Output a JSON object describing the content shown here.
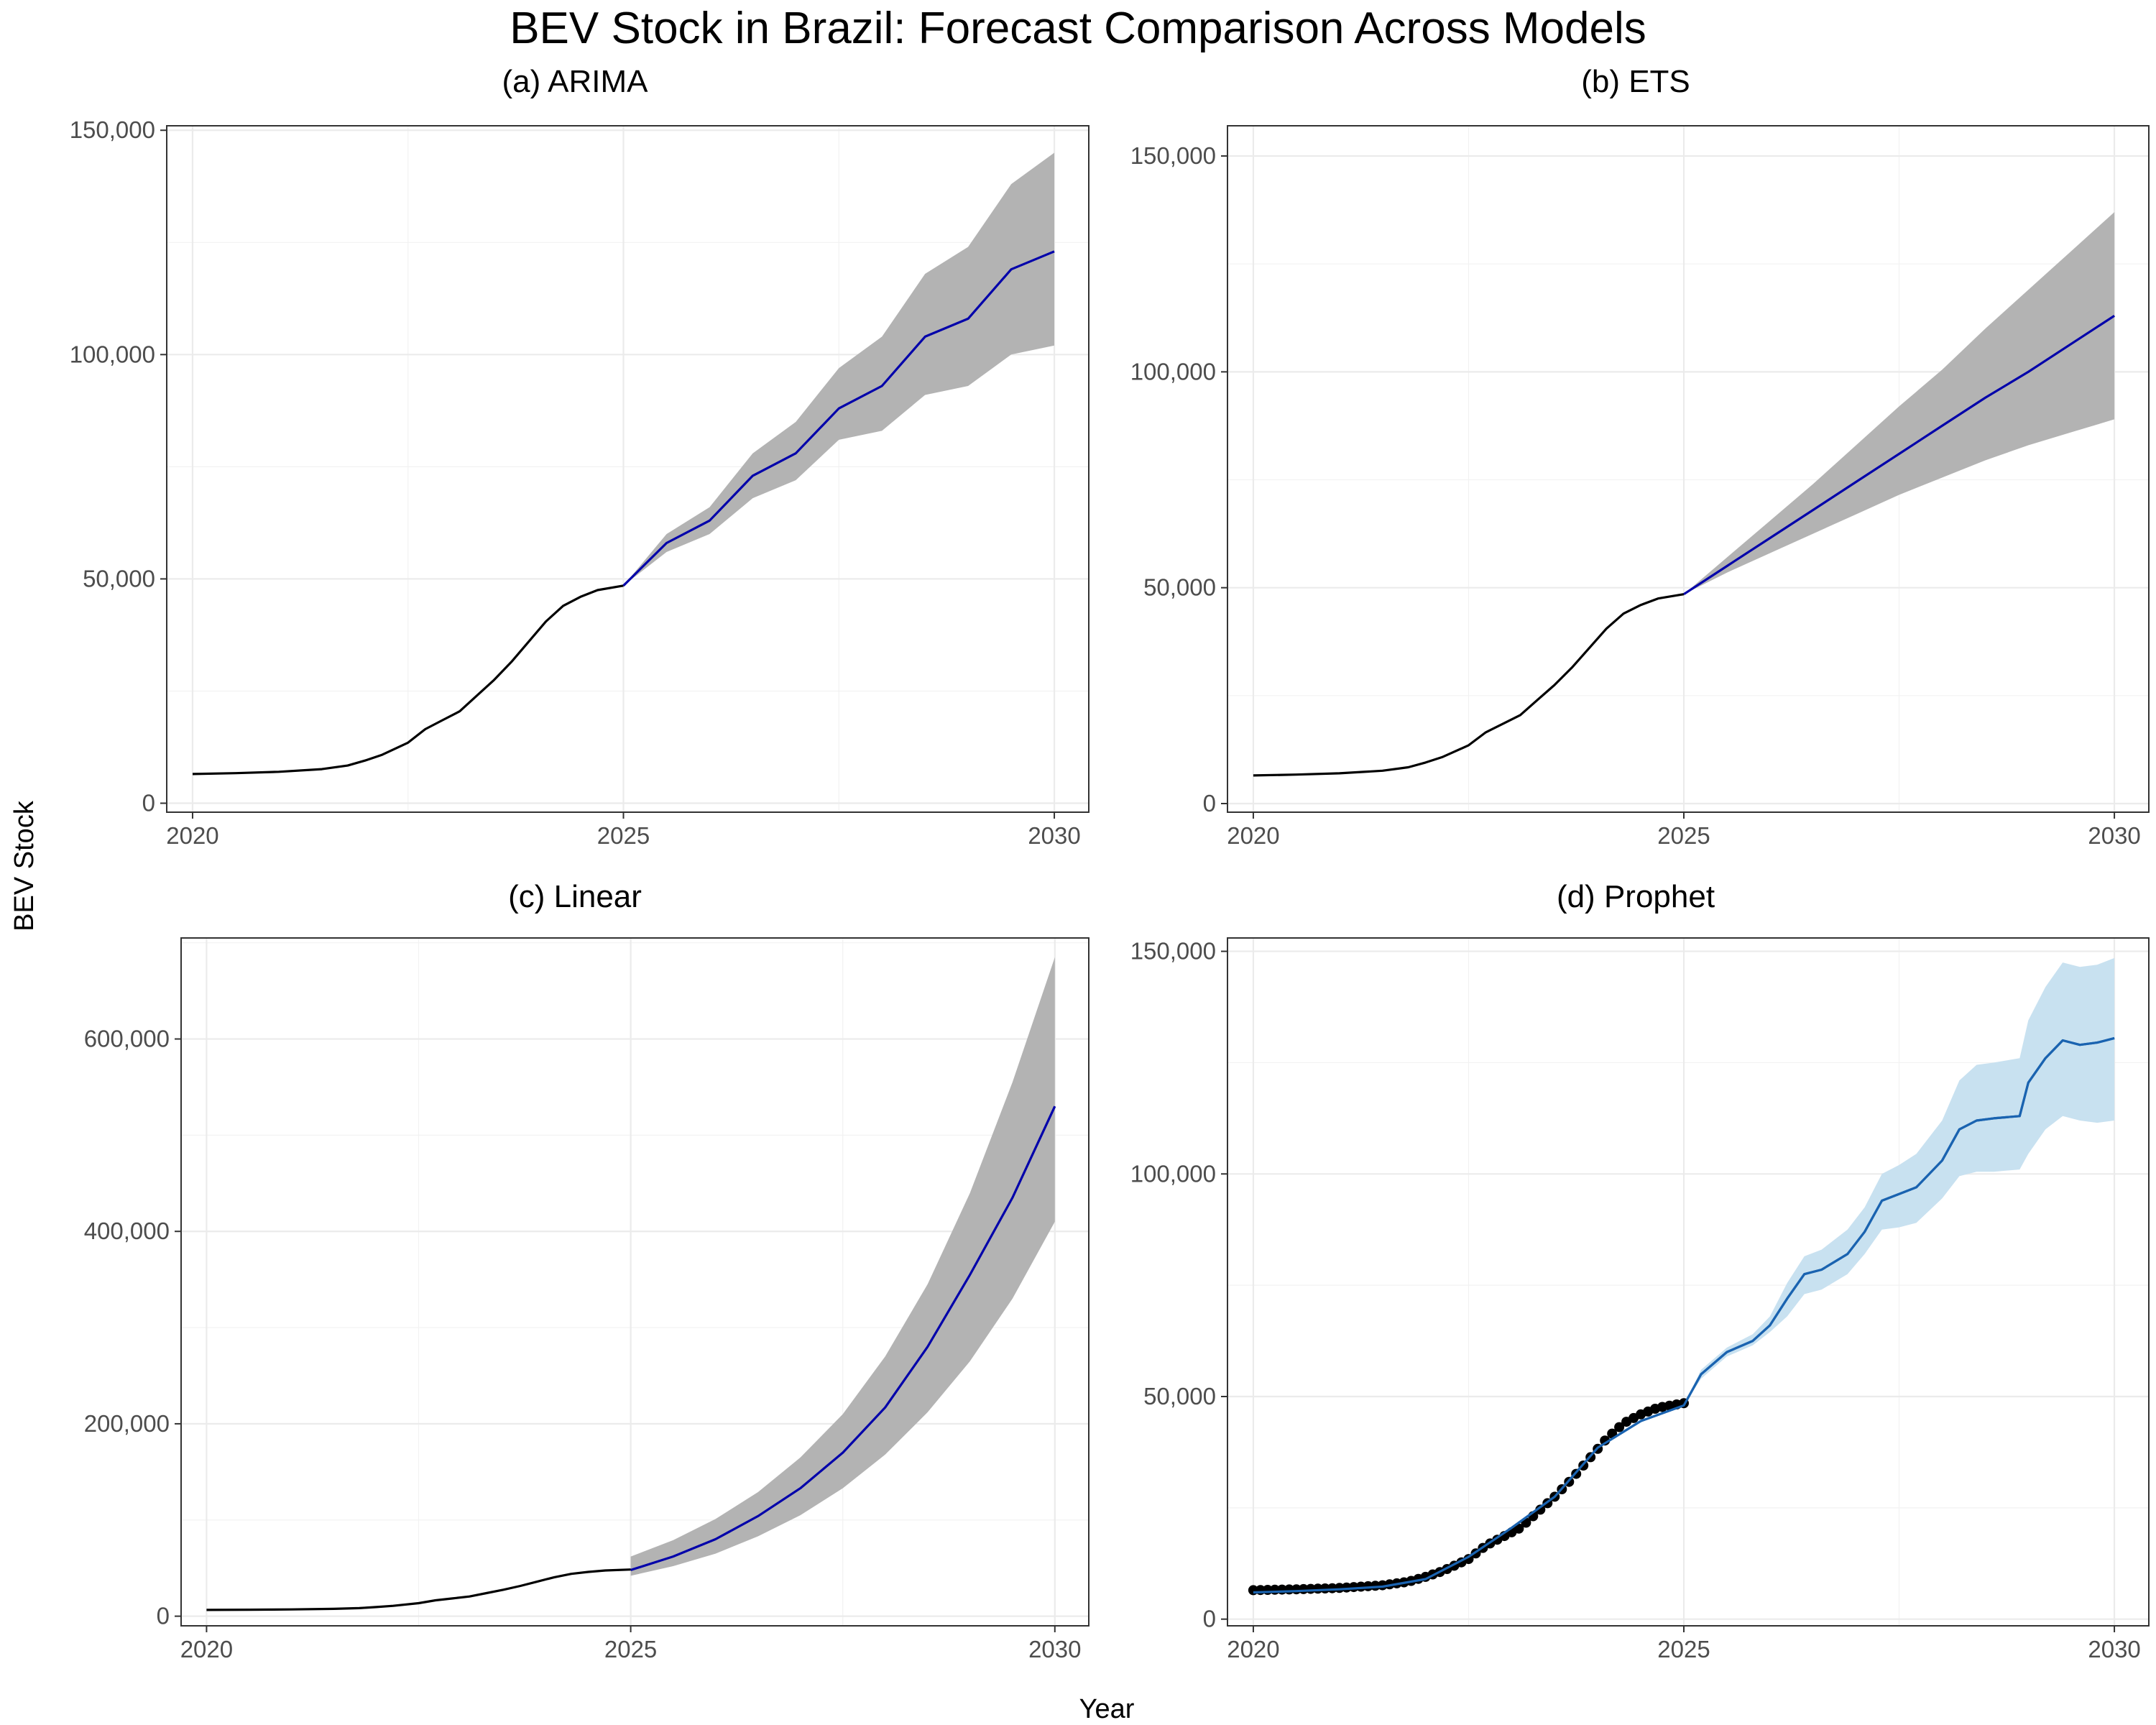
{
  "figure": {
    "title": "BEV Stock in Brazil: Forecast Comparison Across Models",
    "xlabel": "Year",
    "ylabel": "BEV Stock"
  },
  "chart_data": [
    {
      "type": "line",
      "title": "(a) ARIMA",
      "xlim": [
        2019.7,
        2030.4
      ],
      "ylim": [
        -2000,
        151000
      ],
      "x_ticks": [
        2020,
        2025,
        2030
      ],
      "x_tick_labels": [
        "2020",
        "2025",
        "2030"
      ],
      "y_ticks": [
        0,
        50000,
        100000,
        150000
      ],
      "y_tick_labels": [
        "0",
        "50,000",
        "100,000",
        "150,000"
      ],
      "grid": true,
      "history": {
        "x": [
          2020.0,
          2020.5,
          2021.0,
          2021.5,
          2021.8,
          2022.0,
          2022.2,
          2022.5,
          2022.7,
          2022.9,
          2023.1,
          2023.3,
          2023.5,
          2023.7,
          2023.9,
          2024.1,
          2024.3,
          2024.5,
          2024.7,
          2025.0
        ],
        "y": [
          6500,
          6700,
          7000,
          7600,
          8400,
          9500,
          10800,
          13500,
          16500,
          18500,
          20500,
          24000,
          27500,
          31500,
          36000,
          40500,
          44000,
          46000,
          47500,
          48500
        ],
        "color": "#000000"
      },
      "forecast": {
        "x": [
          2025.0,
          2025.5,
          2026.0,
          2026.5,
          2027.0,
          2027.5,
          2028.0,
          2028.5,
          2029.0,
          2029.5,
          2030.0
        ],
        "y": [
          48500,
          58000,
          63000,
          73000,
          78000,
          88000,
          93000,
          104000,
          108000,
          119000,
          123000
        ],
        "lower": [
          48500,
          56000,
          60000,
          68000,
          72000,
          81000,
          83000,
          91000,
          93000,
          100000,
          102000
        ],
        "upper": [
          48500,
          60000,
          66000,
          78000,
          85000,
          97000,
          104000,
          118000,
          124000,
          138000,
          145000
        ],
        "color": "#0000aa",
        "band_color": "#b3b3b3"
      }
    },
    {
      "type": "line",
      "title": "(b) ETS",
      "xlim": [
        2019.7,
        2030.4
      ],
      "ylim": [
        -2000,
        157000
      ],
      "x_ticks": [
        2020,
        2025,
        2030
      ],
      "x_tick_labels": [
        "2020",
        "2025",
        "2030"
      ],
      "y_ticks": [
        0,
        50000,
        100000,
        150000
      ],
      "y_tick_labels": [
        "0",
        "50,000",
        "100,000",
        "150,000"
      ],
      "grid": true,
      "history": {
        "x": [
          2020.0,
          2020.5,
          2021.0,
          2021.5,
          2021.8,
          2022.0,
          2022.2,
          2022.5,
          2022.7,
          2022.9,
          2023.1,
          2023.3,
          2023.5,
          2023.7,
          2023.9,
          2024.1,
          2024.3,
          2024.5,
          2024.7,
          2025.0
        ],
        "y": [
          6500,
          6700,
          7000,
          7600,
          8400,
          9500,
          10800,
          13500,
          16500,
          18500,
          20500,
          24000,
          27500,
          31500,
          36000,
          40500,
          44000,
          46000,
          47500,
          48500
        ],
        "color": "#000000"
      },
      "forecast": {
        "x": [
          2025.0,
          2025.5,
          2026.0,
          2026.5,
          2027.0,
          2027.5,
          2028.0,
          2028.5,
          2029.0,
          2029.5,
          2030.0
        ],
        "y": [
          48500,
          55000,
          61500,
          68000,
          74500,
          81000,
          87500,
          94000,
          100000,
          106500,
          113000
        ],
        "lower": [
          48500,
          53500,
          58000,
          62500,
          67000,
          71500,
          75500,
          79500,
          83000,
          86000,
          89000
        ],
        "upper": [
          48500,
          57000,
          65500,
          74000,
          83000,
          92000,
          100500,
          110000,
          119000,
          128000,
          137000
        ],
        "color": "#0000aa",
        "band_color": "#b3b3b3"
      }
    },
    {
      "type": "line",
      "title": "(c) Linear",
      "xlim": [
        2019.7,
        2030.4
      ],
      "ylim": [
        -10000,
        705000
      ],
      "x_ticks": [
        2020,
        2025,
        2030
      ],
      "x_tick_labels": [
        "2020",
        "2025",
        "2030"
      ],
      "y_ticks": [
        0,
        200000,
        400000,
        600000
      ],
      "y_tick_labels": [
        "0",
        "200,000",
        "400,000",
        "600,000"
      ],
      "grid": true,
      "history": {
        "x": [
          2020.0,
          2020.5,
          2021.0,
          2021.5,
          2021.8,
          2022.0,
          2022.2,
          2022.5,
          2022.7,
          2022.9,
          2023.1,
          2023.3,
          2023.5,
          2023.7,
          2023.9,
          2024.1,
          2024.3,
          2024.5,
          2024.7,
          2025.0
        ],
        "y": [
          6500,
          6700,
          7000,
          7600,
          8400,
          9500,
          10800,
          13500,
          16500,
          18500,
          20500,
          24000,
          27500,
          31500,
          36000,
          40500,
          44000,
          46000,
          47500,
          48500
        ],
        "color": "#000000"
      },
      "forecast": {
        "x": [
          2025.0,
          2025.5,
          2026.0,
          2026.5,
          2027.0,
          2027.5,
          2028.0,
          2028.5,
          2029.0,
          2029.5,
          2030.0
        ],
        "y": [
          48000,
          62000,
          80000,
          104000,
          133000,
          170000,
          217000,
          280000,
          355000,
          435000,
          530000
        ],
        "lower": [
          42000,
          52000,
          65000,
          83000,
          105000,
          133000,
          168000,
          212000,
          265000,
          330000,
          410000
        ],
        "upper": [
          62000,
          79000,
          101000,
          129000,
          165000,
          210000,
          270000,
          345000,
          440000,
          555000,
          685000
        ],
        "color": "#0000aa",
        "band_color": "#b3b3b3"
      }
    },
    {
      "type": "line",
      "title": "(d) Prophet",
      "xlim": [
        2019.7,
        2030.4
      ],
      "ylim": [
        -1500,
        153000
      ],
      "x_ticks": [
        2020,
        2025,
        2030
      ],
      "x_tick_labels": [
        "2020",
        "2025",
        "2030"
      ],
      "y_ticks": [
        0,
        50000,
        100000,
        150000
      ],
      "y_tick_labels": [
        "0",
        "50,000",
        "100,000",
        "150,000"
      ],
      "grid": true,
      "observed_points": {
        "x": [
          2020.0,
          2020.5,
          2021.0,
          2021.5,
          2021.8,
          2022.0,
          2022.2,
          2022.5,
          2022.7,
          2022.9,
          2023.1,
          2023.3,
          2023.5,
          2023.7,
          2023.9,
          2024.1,
          2024.3,
          2024.5,
          2024.7,
          2025.0
        ],
        "y": [
          6500,
          6700,
          7000,
          7600,
          8400,
          9500,
          10800,
          13500,
          16500,
          18500,
          20500,
          24000,
          27500,
          31500,
          36000,
          40500,
          44000,
          46000,
          47500,
          48500
        ],
        "color": "#000000"
      },
      "forecast": {
        "x": [
          2020.0,
          2020.5,
          2021.0,
          2021.5,
          2022.0,
          2022.5,
          2023.0,
          2023.5,
          2024.0,
          2024.5,
          2025.0,
          2025.2,
          2025.5,
          2025.8,
          2026.0,
          2026.2,
          2026.4,
          2026.6,
          2026.9,
          2027.1,
          2027.3,
          2027.5,
          2027.7,
          2028.0,
          2028.2,
          2028.4,
          2028.6,
          2028.9,
          2029.0,
          2029.2,
          2029.4,
          2029.6,
          2029.8,
          2030.0
        ],
        "y": [
          6000,
          6300,
          6700,
          7300,
          9000,
          14000,
          20500,
          27500,
          38500,
          44500,
          48000,
          55000,
          60000,
          62500,
          66000,
          72000,
          77500,
          78500,
          82000,
          87000,
          94000,
          95500,
          97000,
          103000,
          110000,
          112000,
          112500,
          113000,
          120500,
          126000,
          130000,
          129000,
          129500,
          130500
        ],
        "lower": [
          6000,
          6300,
          6700,
          7300,
          9000,
          14000,
          20500,
          27500,
          38500,
          44500,
          48000,
          54000,
          59000,
          61500,
          64500,
          68000,
          73000,
          74000,
          77500,
          82000,
          87500,
          88000,
          89000,
          94500,
          99500,
          100500,
          100500,
          101000,
          104500,
          110000,
          113000,
          112000,
          111500,
          112000
        ],
        "upper": [
          6000,
          6300,
          6700,
          7300,
          9000,
          14000,
          20500,
          27500,
          38500,
          44500,
          48000,
          56000,
          61000,
          64000,
          68000,
          75500,
          81500,
          83000,
          87500,
          92500,
          100000,
          102000,
          104500,
          112000,
          121000,
          124500,
          125000,
          126000,
          134500,
          142000,
          147500,
          146500,
          147000,
          148500
        ],
        "color": "#1a63b0",
        "band_color": "#c8e1f0"
      }
    }
  ]
}
